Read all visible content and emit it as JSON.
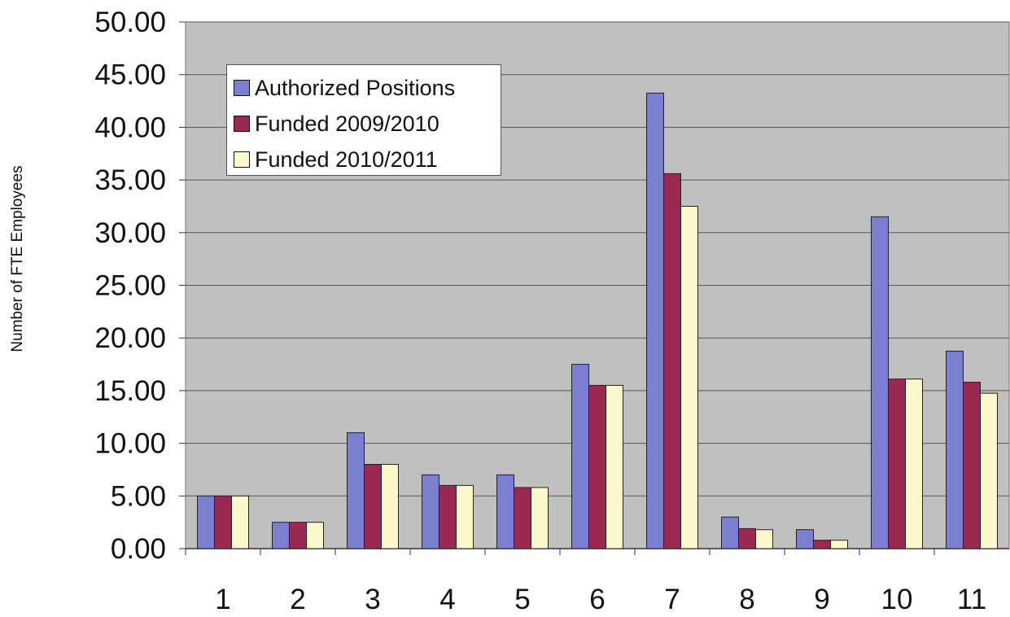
{
  "chart_data": {
    "type": "bar",
    "title": "",
    "xlabel": "",
    "ylabel": "Number of FTE Employees",
    "ylim": [
      0,
      50
    ],
    "y_ticks": [
      "0.00",
      "5.00",
      "10.00",
      "15.00",
      "20.00",
      "25.00",
      "30.00",
      "35.00",
      "40.00",
      "45.00",
      "50.00"
    ],
    "categories": [
      "1",
      "2",
      "3",
      "4",
      "5",
      "6",
      "7",
      "8",
      "9",
      "10",
      "11"
    ],
    "grid": true,
    "legend_position": "top-left",
    "series": [
      {
        "name": "Authorized Positions",
        "color": "#7a7fd0",
        "values": [
          5.0,
          2.5,
          11.0,
          7.0,
          7.0,
          17.5,
          43.25,
          3.0,
          1.8,
          31.5,
          18.75
        ]
      },
      {
        "name": "Funded 2009/2010",
        "color": "#9b2a52",
        "values": [
          5.0,
          2.5,
          8.0,
          6.0,
          5.8,
          15.5,
          35.6,
          1.9,
          0.8,
          16.1,
          15.8
        ]
      },
      {
        "name": "Funded 2010/2011",
        "color": "#fdf7cc",
        "values": [
          5.0,
          2.5,
          8.0,
          6.0,
          5.8,
          15.5,
          32.5,
          1.8,
          0.8,
          16.1,
          14.75
        ]
      }
    ],
    "plot_background": "#c0c0c0"
  }
}
